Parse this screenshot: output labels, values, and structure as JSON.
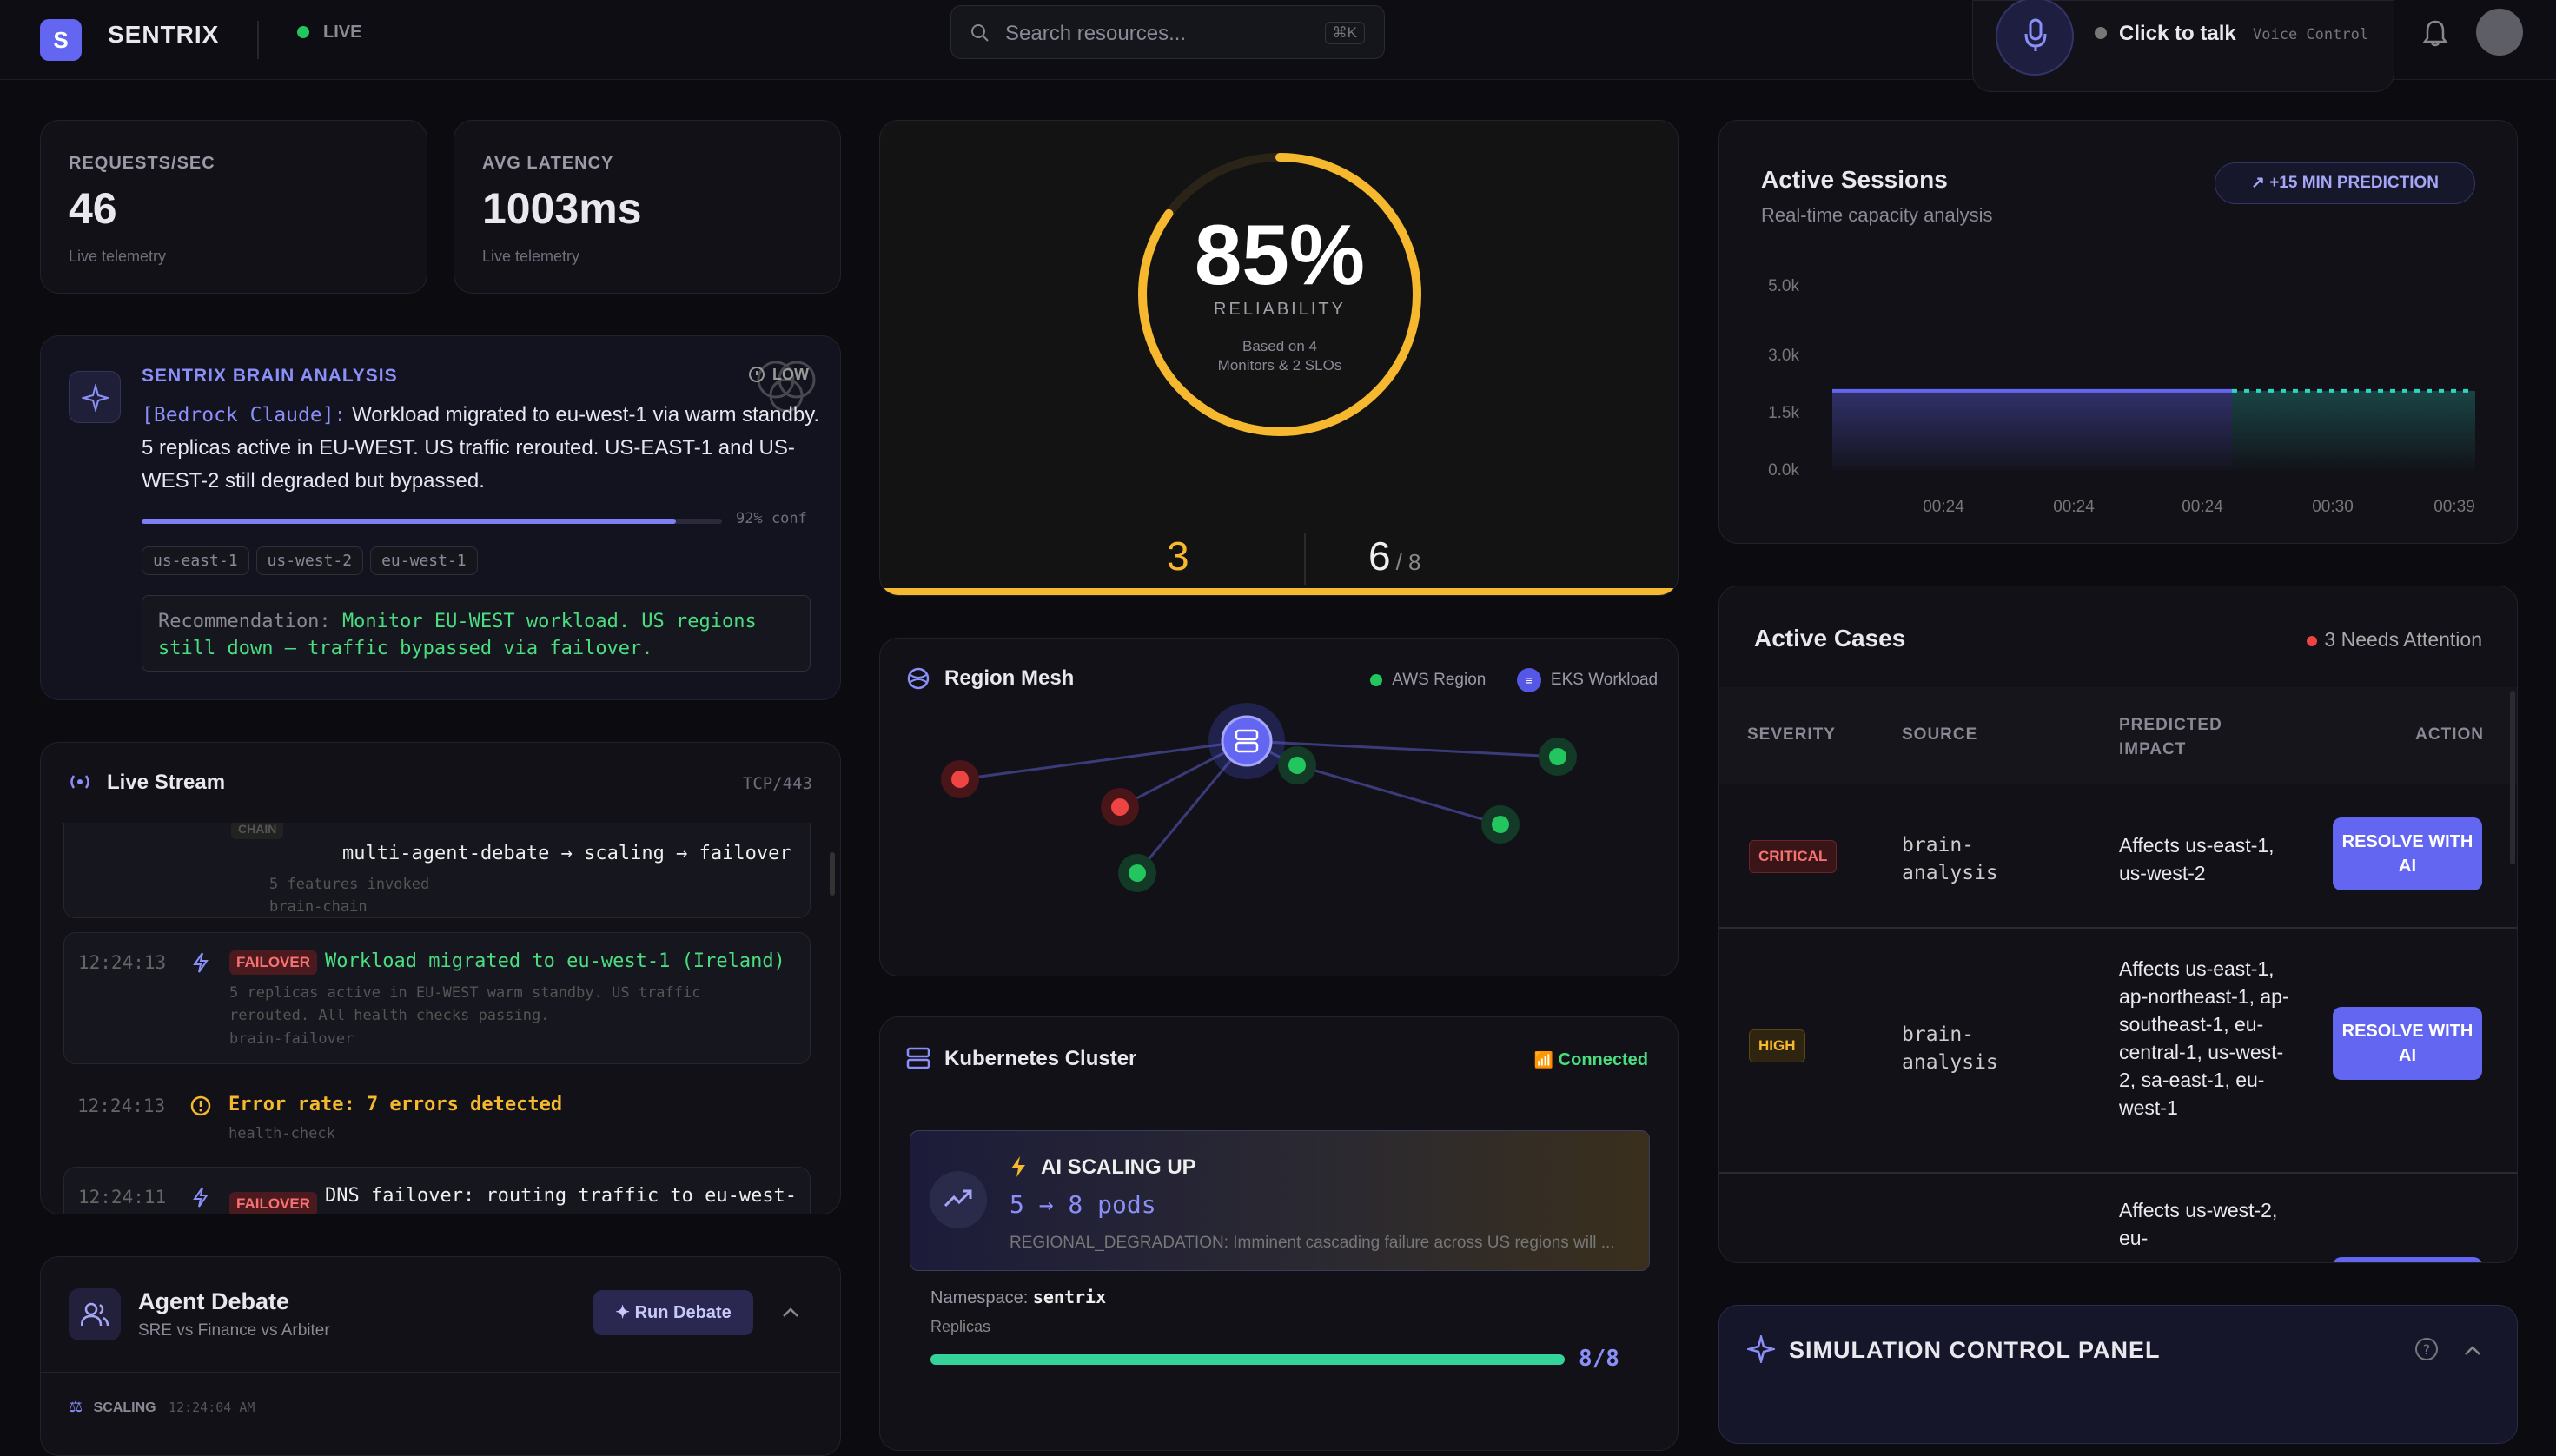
{
  "brand": {
    "logo_letter": "S",
    "name": "SENTRIX",
    "live": "LIVE"
  },
  "search": {
    "placeholder": "Search resources...",
    "shortcut": "⌘K"
  },
  "voice": {
    "label": "Click to talk",
    "sub": "Voice Control"
  },
  "metrics": [
    {
      "label": "REQUESTS/SEC",
      "value": "46",
      "sub": "Live telemetry"
    },
    {
      "label": "AVG LATENCY",
      "value": "1003ms",
      "sub": "Live telemetry"
    }
  ],
  "brain": {
    "title": "SENTRIX BRAIN ANALYSIS",
    "badge": "LOW",
    "model": "[Bedrock Claude]:",
    "text": "Workload migrated to eu-west-1 via warm standby. 5 replicas active in EU-WEST. US traffic rerouted. US-EAST-1 and US-WEST-2 still degraded but bypassed.",
    "confidence": 0.92,
    "conf_label": "92% conf",
    "tags": [
      "us-east-1",
      "us-west-2",
      "eu-west-1"
    ],
    "rec_label": "Recommendation:",
    "rec_text": "Monitor EU-WEST workload. US regions still down — traffic bypassed via failover."
  },
  "reliability": {
    "percent": 85,
    "percent_label": "85%",
    "label": "RELIABILITY",
    "note1": "Based on 4",
    "note2": "Monitors & 2 SLOs",
    "left_value": "3",
    "right_value": "6",
    "right_total": "/ 8"
  },
  "sessions": {
    "title": "Active Sessions",
    "subtitle": "Real-time capacity analysis",
    "prediction": "+15 MIN PREDICTION"
  },
  "chart_data": {
    "type": "area",
    "title": "Active Sessions",
    "y_ticks": [
      "5.0k",
      "3.0k",
      "1.5k",
      "0.0k"
    ],
    "x_ticks": [
      "00:24",
      "00:24",
      "00:24",
      "00:30",
      "00:39"
    ],
    "ylim": [
      0,
      5000
    ],
    "series": [
      {
        "values": [
          2300,
          2300,
          2300,
          2300,
          2300,
          2300,
          2300
        ]
      },
      {
        "values": [
          2300,
          2300,
          2300,
          2300
        ]
      }
    ]
  },
  "mesh": {
    "title": "Region Mesh",
    "legend_aws": "AWS Region",
    "legend_eks": "EKS Workload"
  },
  "k8s": {
    "title": "Kubernetes Cluster",
    "status": "Connected",
    "scaling_title": "AI SCALING UP",
    "scaling_pods": "5 → 8 pods",
    "scaling_reason": "REGIONAL_DEGRADATION: Imminent cascading failure across US regions will ...",
    "ns_label": "Namespace:",
    "ns_value": "sentrix",
    "replicas_label": "Replicas",
    "replicas_value": "8/8",
    "replicas_fraction": 1.0
  },
  "stream": {
    "title": "Live Stream",
    "proto": "TCP/443",
    "events": [
      {
        "badge": "CHAIN",
        "text": "multi-agent-debate → scaling → failover",
        "detail": "5 features invoked",
        "source": "brain-chain"
      },
      {
        "time": "12:24:13",
        "badge": "FAILOVER",
        "text": "Workload migrated to eu-west-1 (Ireland)",
        "detail": "5 replicas active in EU-WEST warm standby. US traffic rerouted. All health checks passing.",
        "source": "brain-failover"
      },
      {
        "time": "12:24:13",
        "text": "Error rate: 7 errors detected",
        "source": "health-check"
      },
      {
        "time": "12:24:11",
        "badge": "FAILOVER",
        "text": "DNS failover: routing traffic to eu-west-"
      }
    ]
  },
  "debate": {
    "title": "Agent Debate",
    "subtitle": "SRE vs Finance vs Arbiter",
    "run": "Run Debate",
    "next_tag": "SCALING",
    "next_time": "12:24:04 AM"
  },
  "cases": {
    "title": "Active Cases",
    "needs": "3 Needs Attention",
    "headers": [
      "SEVERITY",
      "SOURCE",
      "PREDICTED IMPACT",
      "ACTION"
    ],
    "rows": [
      {
        "severity": "CRITICAL",
        "source": "brain-analysis",
        "impact": "Affects us-east-1, us-west-2",
        "action": "RESOLVE WITH AI"
      },
      {
        "severity": "HIGH",
        "source": "brain-analysis",
        "impact": "Affects us-east-1, ap-northeast-1, ap-southeast-1, eu-central-1, us-west-2, sa-east-1, eu-west-1",
        "action": "RESOLVE WITH AI"
      },
      {
        "impact": "Affects us-west-2, eu-"
      }
    ]
  },
  "sim": {
    "title": "SIMULATION CONTROL PANEL"
  },
  "colors": {
    "accent": "#6366f1",
    "amber": "#f5b82e",
    "green": "#22c55e",
    "red": "#ef4444"
  }
}
